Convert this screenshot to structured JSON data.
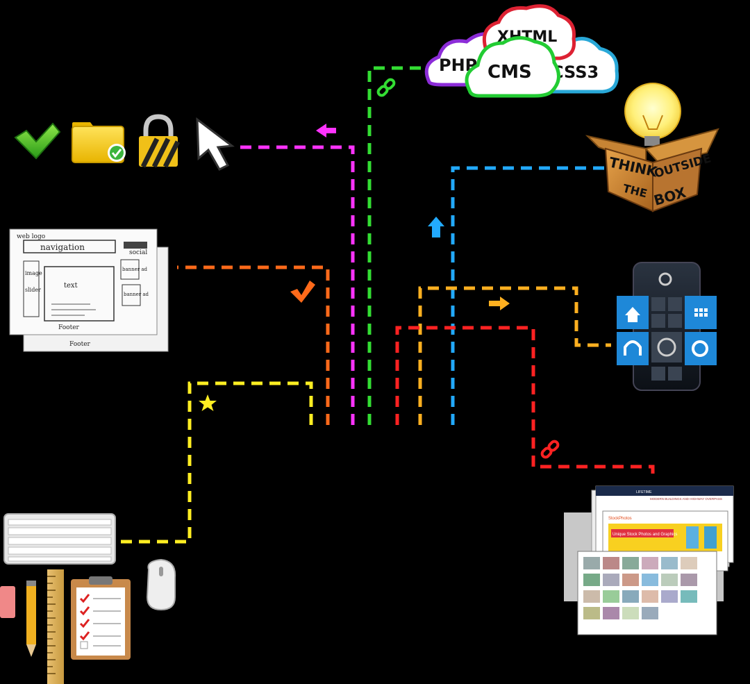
{
  "clouds": {
    "php": "PHP",
    "xhtml": "XHTML",
    "css3": "CSS3",
    "cms": "CMS"
  },
  "think_box": {
    "think": "THINK",
    "outside": "OUTSIDE",
    "the": "THE",
    "box": "BOX"
  },
  "wireframe": {
    "logo": "web logo",
    "navigation": "navigation",
    "social": "social",
    "image": "image",
    "slider": "slider",
    "text": "text",
    "banner1": "banner ad",
    "banner2": "banner ad",
    "footer1": "Footer",
    "footer2": "Footer"
  },
  "website_mockup": {
    "header1": "LIFETIME",
    "heading1": "MODERN BUILDINGS AND HIGHWAY OVERPASS",
    "banner": "Unique Stock Photos and Graphics",
    "logo": "StockPhotos"
  },
  "colors": {
    "magenta": "#ff33ff",
    "green": "#33dd33",
    "orange": "#ff6a1a",
    "yellow": "#ffee22",
    "blue": "#22aaff",
    "amber": "#ffb020",
    "red": "#ff2222"
  }
}
